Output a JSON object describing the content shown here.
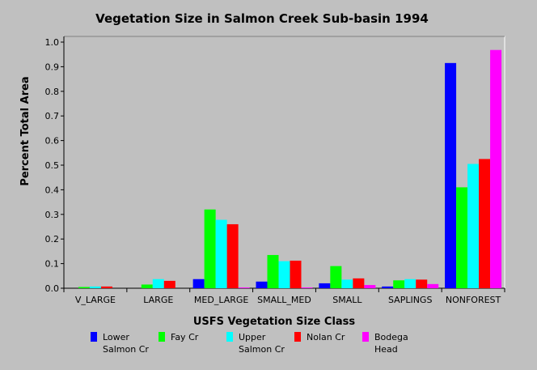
{
  "chart_data": {
    "type": "bar",
    "title": "Vegetation Size in Salmon Creek Sub-basin 1994",
    "xlabel": "USFS Vegetation Size Class",
    "ylabel": "Percent Total Area",
    "ylim": [
      0,
      1.0
    ],
    "yticks": [
      "0.0",
      "0.1",
      "0.2",
      "0.3",
      "0.4",
      "0.5",
      "0.6",
      "0.7",
      "0.8",
      "0.9",
      "1.0"
    ],
    "grid": false,
    "legend_position": "bottom",
    "categories": [
      "V_LARGE",
      "LARGE",
      "MED_LARGE",
      "SMALL_MED",
      "SMALL",
      "SAPLINGS",
      "NONFOREST"
    ],
    "series": [
      {
        "name": "Lower Salmon Cr",
        "label_lines": [
          "Lower",
          "Salmon Cr"
        ],
        "color": "#0000ff",
        "values": [
          0.0,
          0.0,
          0.037,
          0.027,
          0.02,
          0.007,
          0.915
        ]
      },
      {
        "name": "Fay Cr",
        "label_lines": [
          "Fay Cr"
        ],
        "color": "#00ff00",
        "values": [
          0.005,
          0.015,
          0.32,
          0.135,
          0.09,
          0.032,
          0.41
        ]
      },
      {
        "name": "Upper Salmon Cr",
        "label_lines": [
          "Upper",
          "Salmon Cr"
        ],
        "color": "#00ffff",
        "values": [
          0.007,
          0.037,
          0.278,
          0.11,
          0.035,
          0.037,
          0.505
        ]
      },
      {
        "name": "Nolan Cr",
        "label_lines": [
          "Nolan Cr"
        ],
        "color": "#ff0000",
        "values": [
          0.007,
          0.03,
          0.26,
          0.112,
          0.04,
          0.035,
          0.525
        ]
      },
      {
        "name": "Bodega Head",
        "label_lines": [
          "Bodega",
          "Head"
        ],
        "color": "#ff00ff",
        "values": [
          0.0,
          0.0,
          0.003,
          0.003,
          0.013,
          0.017,
          0.968
        ]
      }
    ]
  }
}
